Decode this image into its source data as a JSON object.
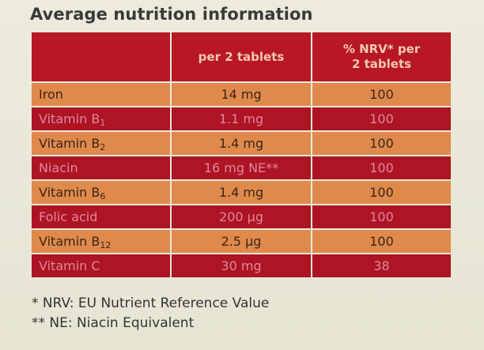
{
  "title": "Average nutrition information",
  "table": {
    "headers": [
      "",
      "per 2 tablets",
      "% NRV* per",
      "2 tablets"
    ],
    "rows": [
      {
        "name": "Iron",
        "sub": "",
        "amount": "14 mg",
        "nrv": "100"
      },
      {
        "name": "Vitamin B",
        "sub": "1",
        "amount": "1.1 mg",
        "nrv": "100"
      },
      {
        "name": "Vitamin B",
        "sub": "2",
        "amount": "1.4 mg",
        "nrv": "100"
      },
      {
        "name": "Niacin",
        "sub": "",
        "amount": "16 mg NE**",
        "nrv": "100"
      },
      {
        "name": "Vitamin B",
        "sub": "6",
        "amount": "1.4 mg",
        "nrv": "100"
      },
      {
        "name": "Folic acid",
        "sub": "",
        "amount": "200 µg",
        "nrv": "100"
      },
      {
        "name": "Vitamin B",
        "sub": "12",
        "amount": "2.5 µg",
        "nrv": "100"
      },
      {
        "name": "Vitamin C",
        "sub": "",
        "amount": "30 mg",
        "nrv": "38"
      }
    ]
  },
  "footnotes": [
    "* NRV: EU Nutrient Reference Value",
    "** NE: Niacin Equivalent"
  ]
}
